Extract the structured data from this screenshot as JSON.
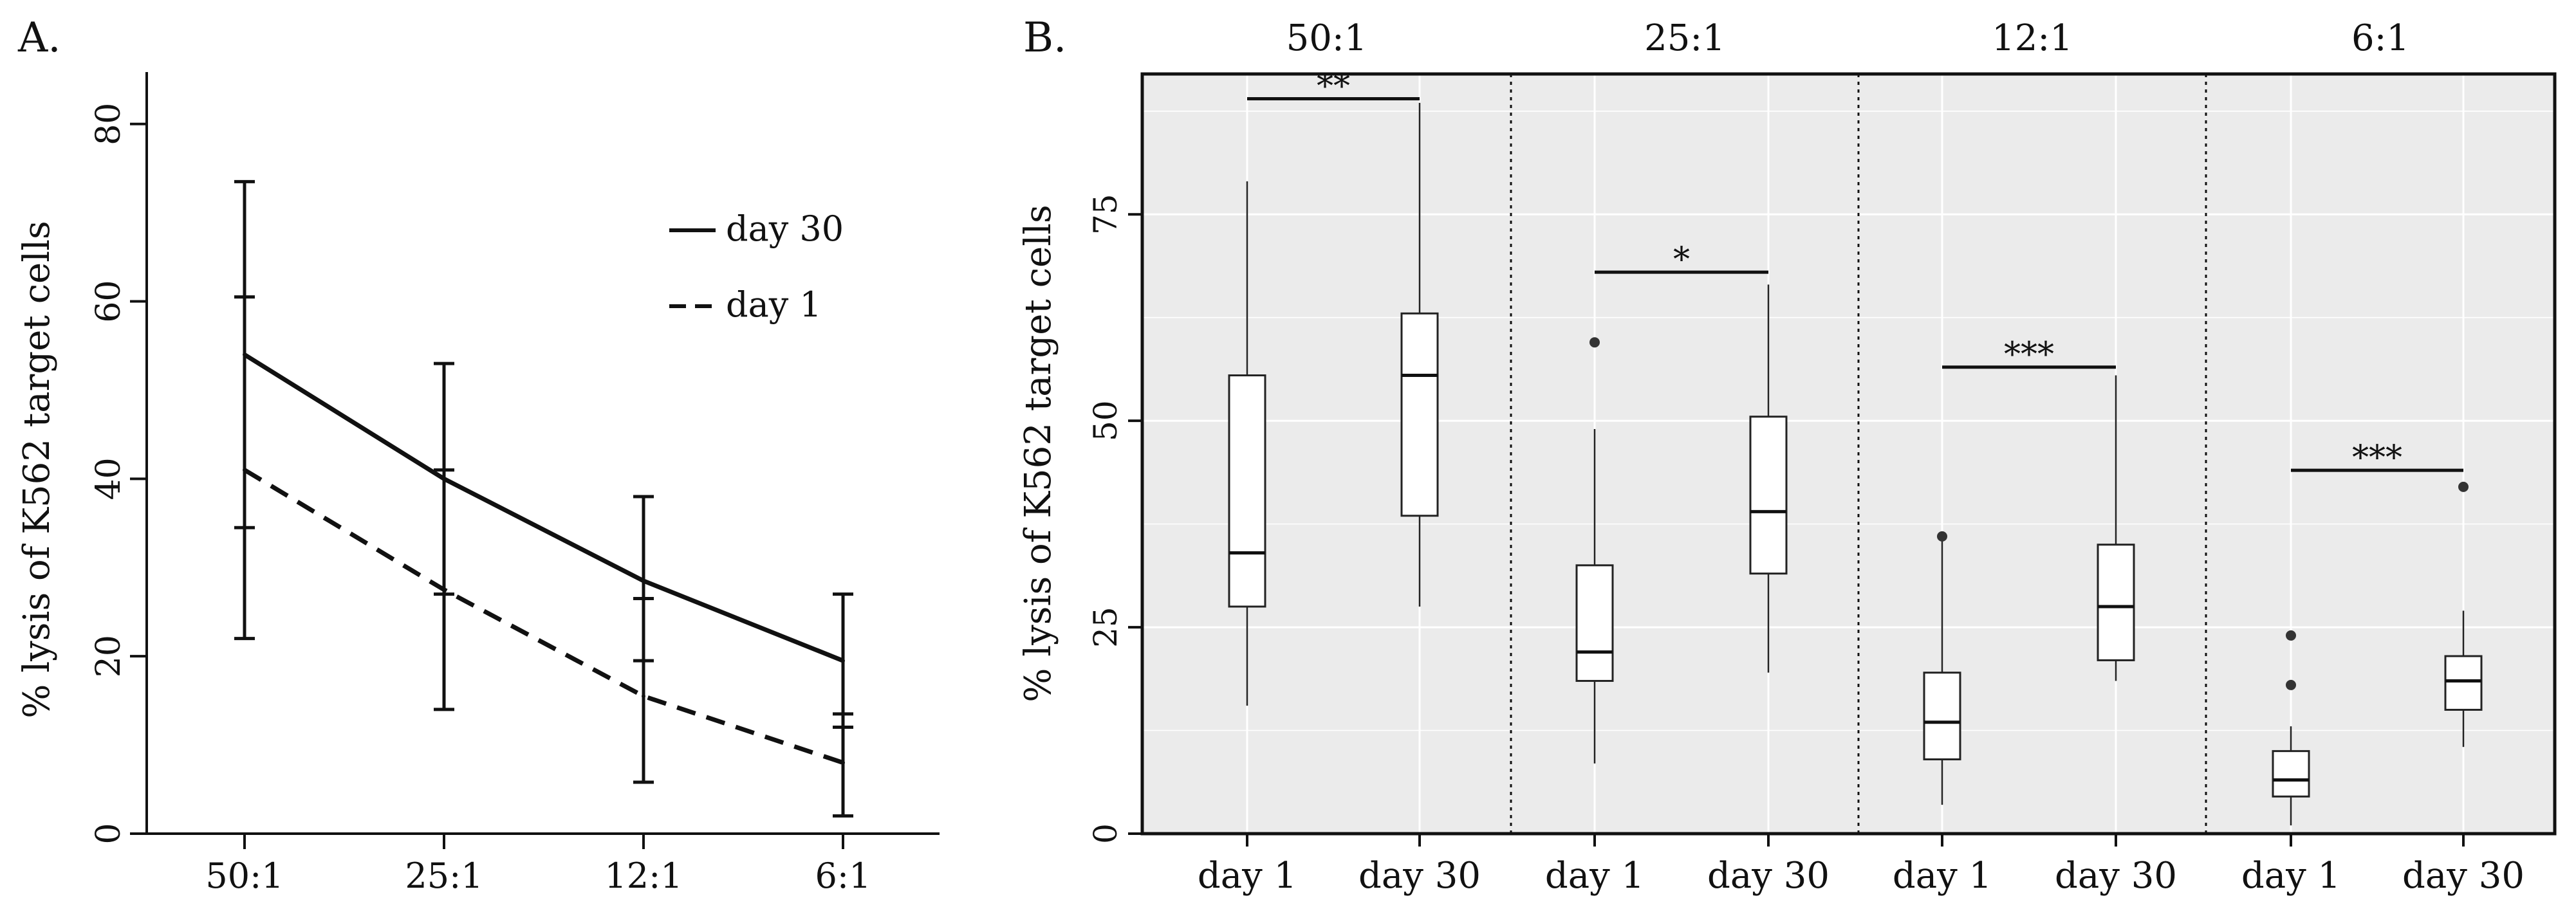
{
  "chart_data": [
    {
      "panel_label": "A.",
      "type": "line",
      "ylabel": "% lysis of K562 target cells",
      "categories": [
        "50:1",
        "25:1",
        "12:1",
        "6:1"
      ],
      "yticks": [
        0,
        20,
        40,
        60,
        80
      ],
      "ylim": [
        0,
        86
      ],
      "legend_position": "top-right",
      "series": [
        {
          "name": "day 30",
          "style": "solid",
          "values": [
            54,
            40,
            28.5,
            19.5
          ],
          "err_low": [
            34.5,
            27,
            19.5,
            12
          ],
          "err_high": [
            73.5,
            53,
            38,
            27
          ]
        },
        {
          "name": "day 1",
          "style": "dashed",
          "values": [
            41,
            27.5,
            15.5,
            8
          ],
          "err_low": [
            22,
            14,
            5.8,
            2
          ],
          "err_high": [
            60.5,
            41,
            26.5,
            13.5
          ]
        }
      ]
    },
    {
      "panel_label": "B.",
      "type": "box",
      "ylabel": "% lysis of K562 target cells",
      "yticks": [
        0,
        25,
        50,
        75
      ],
      "ylim": [
        0,
        92
      ],
      "background": "#ebebeb",
      "facets": [
        {
          "label": "50:1",
          "sig": "**",
          "sig_y": 89,
          "boxes": [
            {
              "group": "day 1",
              "min": 15.5,
              "q1": 27.5,
              "median": 34,
              "q3": 55.5,
              "max": 79,
              "outliers": []
            },
            {
              "group": "day 30",
              "min": 27.5,
              "q1": 38.5,
              "median": 55.5,
              "q3": 63,
              "max": 88.5,
              "outliers": []
            }
          ]
        },
        {
          "label": "25:1",
          "sig": "*",
          "sig_y": 68,
          "boxes": [
            {
              "group": "day 1",
              "min": 8.5,
              "q1": 18.5,
              "median": 22,
              "q3": 32.5,
              "max": 49,
              "outliers": [
                59.5
              ]
            },
            {
              "group": "day 30",
              "min": 19.5,
              "q1": 31.5,
              "median": 39,
              "q3": 50.5,
              "max": 66.5,
              "outliers": []
            }
          ]
        },
        {
          "label": "12:1",
          "sig": "***",
          "sig_y": 56.5,
          "boxes": [
            {
              "group": "day 1",
              "min": 3.5,
              "q1": 9,
              "median": 13.5,
              "q3": 19.5,
              "max": 36,
              "outliers": [
                36
              ]
            },
            {
              "group": "day 30",
              "min": 18.5,
              "q1": 21,
              "median": 27.5,
              "q3": 35,
              "max": 55.5,
              "outliers": []
            }
          ]
        },
        {
          "label": "6:1",
          "sig": "***",
          "sig_y": 44,
          "boxes": [
            {
              "group": "day 1",
              "min": 1,
              "q1": 4.5,
              "median": 6.5,
              "q3": 10,
              "max": 13,
              "outliers": [
                18,
                24
              ]
            },
            {
              "group": "day 30",
              "min": 10.5,
              "q1": 15,
              "median": 18.5,
              "q3": 21.5,
              "max": 27,
              "outliers": [
                42
              ]
            }
          ]
        }
      ]
    }
  ]
}
